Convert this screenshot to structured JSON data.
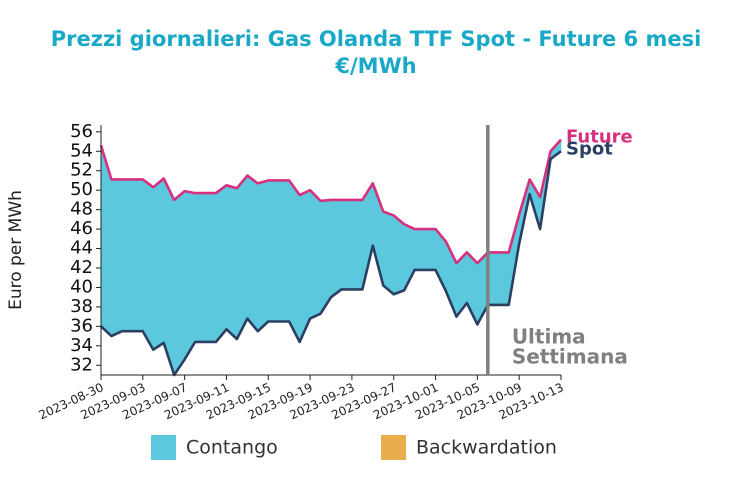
{
  "chart_data": {
    "type": "spread",
    "title": [
      "Prezzi giornalieri: Gas Olanda TTF Spot - Future 6 mesi",
      "€/MWh"
    ],
    "y_label": "Euro per MWh",
    "x": [
      "2023-08-30",
      "2023-08-31",
      "2023-09-01",
      "2023-09-02",
      "2023-09-03",
      "2023-09-04",
      "2023-09-05",
      "2023-09-06",
      "2023-09-07",
      "2023-09-08",
      "2023-09-09",
      "2023-09-10",
      "2023-09-11",
      "2023-09-12",
      "2023-09-13",
      "2023-09-14",
      "2023-09-15",
      "2023-09-16",
      "2023-09-17",
      "2023-09-18",
      "2023-09-19",
      "2023-09-20",
      "2023-09-21",
      "2023-09-22",
      "2023-09-23",
      "2023-09-24",
      "2023-09-25",
      "2023-09-26",
      "2023-09-27",
      "2023-09-28",
      "2023-09-29",
      "2023-09-30",
      "2023-10-01",
      "2023-10-02",
      "2023-10-03",
      "2023-10-04",
      "2023-10-05",
      "2023-10-06",
      "2023-10-07",
      "2023-10-08",
      "2023-10-09",
      "2023-10-10",
      "2023-10-11",
      "2023-10-12",
      "2023-10-13"
    ],
    "series": [
      {
        "name": "Future",
        "color": "#d6307f",
        "values": [
          54.6,
          51.1,
          51.1,
          51.1,
          51.1,
          50.3,
          51.2,
          49.0,
          49.9,
          49.7,
          49.7,
          49.7,
          50.5,
          50.2,
          51.5,
          50.7,
          51.0,
          51.0,
          51.0,
          49.5,
          50.0,
          48.9,
          49.0,
          49.0,
          49.0,
          49.0,
          50.7,
          47.8,
          47.4,
          46.5,
          46.0,
          46.0,
          46.0,
          44.7,
          42.5,
          43.6,
          42.5,
          43.6,
          43.6,
          43.6,
          47.5,
          51.1,
          49.3,
          54.0,
          55.2
        ]
      },
      {
        "name": "Spot",
        "color": "#2b3f62",
        "values": [
          36.0,
          35.0,
          35.5,
          35.5,
          35.5,
          33.6,
          34.3,
          31.0,
          32.6,
          34.4,
          34.4,
          34.4,
          35.7,
          34.7,
          36.8,
          35.5,
          36.5,
          36.5,
          36.5,
          34.4,
          36.8,
          37.3,
          39.0,
          39.8,
          39.8,
          39.8,
          44.3,
          40.2,
          39.3,
          39.7,
          41.8,
          41.8,
          41.8,
          39.6,
          37.0,
          38.4,
          36.2,
          38.2,
          38.2,
          38.2,
          44.5,
          49.6,
          46.0,
          53.2,
          54.0
        ]
      }
    ],
    "fills": [
      {
        "name": "Contango",
        "color": "#5bc8de"
      },
      {
        "name": "Backwardation",
        "color": "#e9ad4c"
      }
    ],
    "xlim": [
      "2023-08-30",
      "2023-10-13"
    ],
    "xticks": [
      "2023-08-30",
      "2023-09-03",
      "2023-09-07",
      "2023-09-11",
      "2023-09-15",
      "2023-09-19",
      "2023-09-23",
      "2023-09-27",
      "2023-10-01",
      "2023-10-05",
      "2023-10-09",
      "2023-10-13"
    ],
    "ylim": [
      31,
      56.7
    ],
    "yticks": [
      32,
      34,
      36,
      38,
      40,
      42,
      44,
      46,
      48,
      50,
      52,
      54,
      56
    ],
    "annotation": {
      "x": "2023-10-06",
      "text": [
        "Ultima",
        "Settimana"
      ],
      "color": "#808080"
    }
  }
}
